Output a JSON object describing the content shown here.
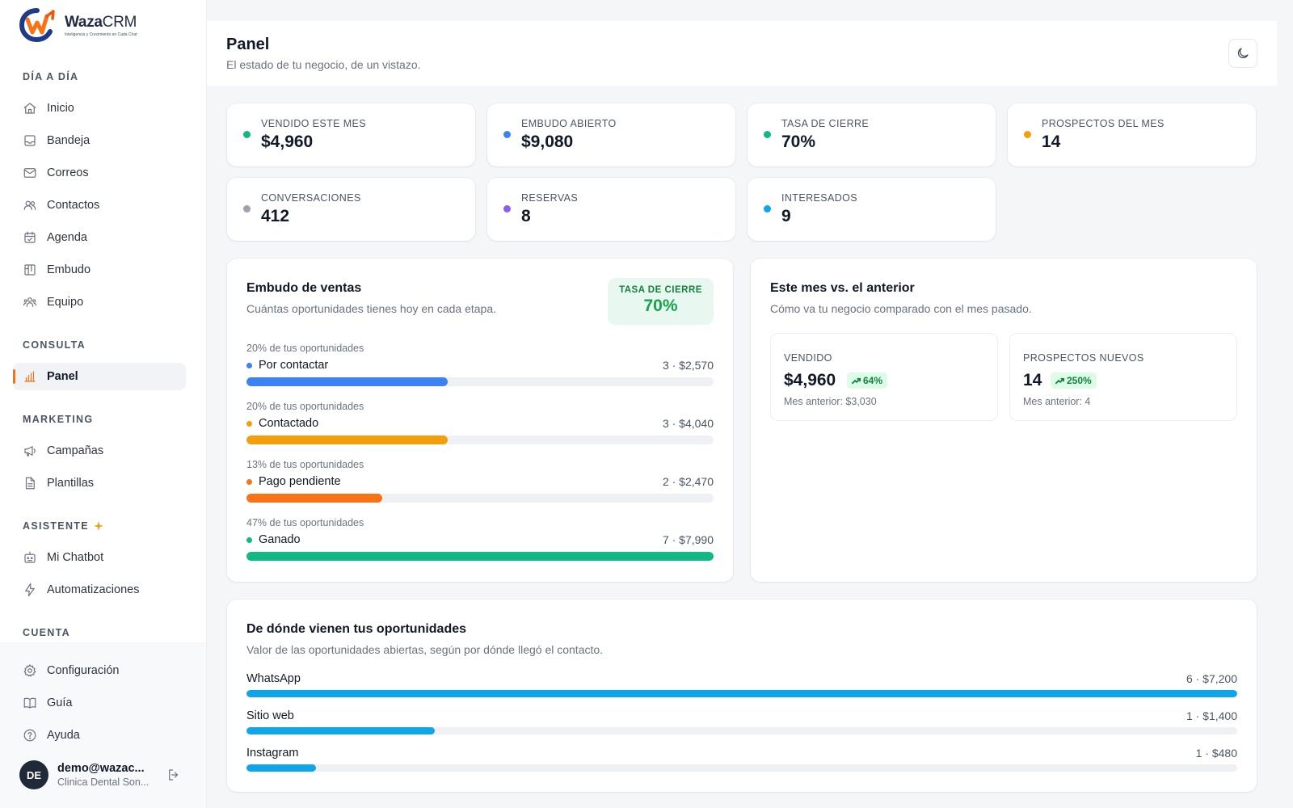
{
  "brand": {
    "name_bold": "Waza",
    "name_light": "CRM",
    "tagline": "Inteligencia y Crecimiento en Cada Chat"
  },
  "sidebar": {
    "sections": {
      "day": "DÍA A DÍA",
      "consult": "CONSULTA",
      "marketing": "MARKETING",
      "assistant": "ASISTENTE",
      "account": "CUENTA"
    },
    "items": [
      {
        "label": "Inicio",
        "icon": "home-icon"
      },
      {
        "label": "Bandeja",
        "icon": "inbox-icon"
      },
      {
        "label": "Correos",
        "icon": "mail-icon"
      },
      {
        "label": "Contactos",
        "icon": "users-icon"
      },
      {
        "label": "Agenda",
        "icon": "calendar-icon"
      },
      {
        "label": "Embudo",
        "icon": "kanban-icon"
      },
      {
        "label": "Equipo",
        "icon": "team-icon"
      },
      {
        "label": "Panel",
        "icon": "bar-chart-icon",
        "active": true
      },
      {
        "label": "Campañas",
        "icon": "megaphone-icon"
      },
      {
        "label": "Plantillas",
        "icon": "file-icon"
      },
      {
        "label": "Mi Chatbot",
        "icon": "bot-icon"
      },
      {
        "label": "Automatizaciones",
        "icon": "bolt-icon"
      },
      {
        "label": "Configuración",
        "icon": "gear-icon"
      },
      {
        "label": "Guía",
        "icon": "book-icon"
      },
      {
        "label": "Ayuda",
        "icon": "help-icon"
      }
    ],
    "user": {
      "initials": "DE",
      "name": "demo@wazac...",
      "org": "Clinica Dental Son..."
    }
  },
  "header": {
    "title": "Panel",
    "subtitle": "El estado de tu negocio, de un vistazo."
  },
  "stats": [
    {
      "label": "VENDIDO ESTE MES",
      "value": "$4,960",
      "color": "#10b981"
    },
    {
      "label": "EMBUDO ABIERTO",
      "value": "$9,080",
      "color": "#3b82f6"
    },
    {
      "label": "TASA DE CIERRE",
      "value": "70%",
      "color": "#10b981"
    },
    {
      "label": "PROSPECTOS DEL MES",
      "value": "14",
      "color": "#f59e0b"
    },
    {
      "label": "CONVERSACIONES",
      "value": "412",
      "color": "#9ca3af"
    },
    {
      "label": "RESERVAS",
      "value": "8",
      "color": "#8b5cf6"
    },
    {
      "label": "INTERESADOS",
      "value": "9",
      "color": "#0ea5e9"
    }
  ],
  "funnel": {
    "title": "Embudo de ventas",
    "subtitle": "Cuántas oportunidades tienes hoy en cada etapa.",
    "rate_label": "TASA DE CIERRE",
    "rate_value": "70%",
    "stages": [
      {
        "pct": "20% de tus oportunidades",
        "name": "Por contactar",
        "meta": "3 · $2,570",
        "color": "#3b82f6",
        "fill": 0.43
      },
      {
        "pct": "20% de tus oportunidades",
        "name": "Contactado",
        "meta": "3 · $4,040",
        "color": "#f59e0b",
        "fill": 0.43
      },
      {
        "pct": "13% de tus oportunidades",
        "name": "Pago pendiente",
        "meta": "2 · $2,470",
        "color": "#f97316",
        "fill": 0.29
      },
      {
        "pct": "47% de tus oportunidades",
        "name": "Ganado",
        "meta": "7 · $7,990",
        "color": "#10b981",
        "fill": 1.0
      }
    ]
  },
  "compare": {
    "title": "Este mes vs. el anterior",
    "subtitle": "Cómo va tu negocio comparado con el mes pasado.",
    "cards": [
      {
        "label": "VENDIDO",
        "value": "$4,960",
        "change": "64%",
        "prev": "Mes anterior: $3,030"
      },
      {
        "label": "PROSPECTOS NUEVOS",
        "value": "14",
        "change": "250%",
        "prev": "Mes anterior: 4"
      }
    ]
  },
  "sources": {
    "title": "De dónde vienen tus oportunidades",
    "subtitle": "Valor de las oportunidades abiertas, según por dónde llegó el contacto.",
    "items": [
      {
        "name": "WhatsApp",
        "meta": "6 · $7,200",
        "fill": 1.0
      },
      {
        "name": "Sitio web",
        "meta": "1 · $1,400",
        "fill": 0.19
      },
      {
        "name": "Instagram",
        "meta": "1 · $480",
        "fill": 0.07
      }
    ],
    "color": "#0ea5e9"
  }
}
